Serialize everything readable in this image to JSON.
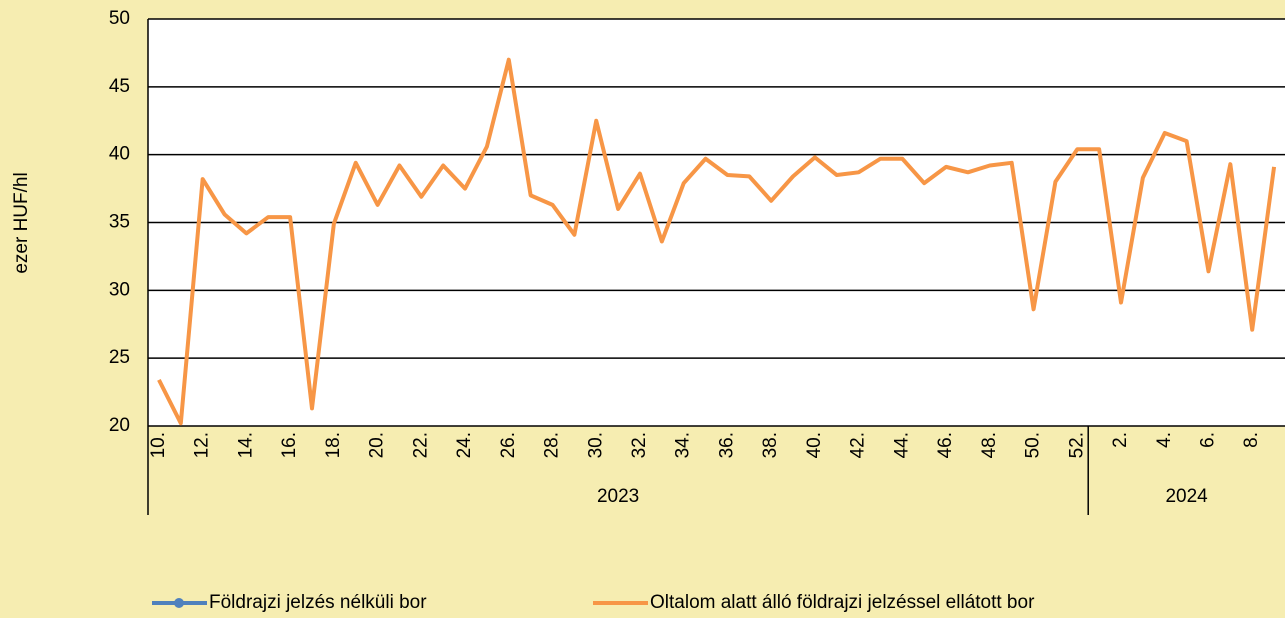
{
  "chart_data": {
    "type": "line",
    "y_label": "ezer HUF/hl",
    "categories": [
      "10.",
      null,
      "12.",
      null,
      "14.",
      null,
      "16.",
      null,
      "18.",
      null,
      "20.",
      null,
      "22.",
      null,
      "24.",
      null,
      "26.",
      null,
      "28.",
      null,
      "30.",
      null,
      "32.",
      null,
      "34.",
      null,
      "36.",
      null,
      "38.",
      null,
      "40.",
      null,
      "42.",
      null,
      "44.",
      null,
      "46.",
      null,
      "48.",
      null,
      "50.",
      null,
      "52.",
      null,
      "2.",
      null,
      "4.",
      null,
      "6.",
      null,
      "8.",
      null
    ],
    "groups": [
      {
        "label": "2023",
        "size": 43
      },
      {
        "label": "2024",
        "size": 9
      }
    ],
    "series": [
      {
        "name": "Földrajzi jelzés nélküli bor",
        "color": "#4f81bd",
        "values": [
          null,
          null,
          null,
          null,
          null,
          null,
          null,
          null,
          null,
          null,
          null,
          null,
          null,
          null,
          null,
          null,
          null,
          null,
          null,
          null,
          null,
          null,
          null,
          null,
          null,
          null,
          null,
          null,
          null,
          null,
          null,
          null,
          null,
          null,
          null,
          null,
          null,
          null,
          null,
          null,
          null,
          null,
          null,
          null,
          null,
          null,
          null,
          null,
          null,
          null,
          null,
          null
        ]
      },
      {
        "name": "Oltalom alatt álló földrajzi jelzéssel ellátott bor",
        "color": "#f79646",
        "values": [
          23.4,
          20.2,
          38.2,
          35.6,
          34.2,
          35.4,
          35.4,
          21.3,
          34.9,
          39.4,
          36.3,
          39.2,
          36.9,
          39.2,
          37.5,
          40.6,
          47.0,
          37.0,
          36.3,
          34.1,
          42.5,
          36.0,
          38.6,
          33.6,
          37.9,
          39.7,
          38.5,
          38.4,
          36.6,
          38.4,
          39.8,
          38.5,
          38.7,
          39.7,
          39.7,
          37.9,
          39.1,
          38.7,
          39.2,
          39.4,
          28.6,
          38.0,
          40.4,
          40.4,
          29.1,
          38.3,
          41.6,
          41.0,
          31.4,
          39.3,
          27.1,
          39.1
        ]
      }
    ],
    "ylim": [
      20,
      50
    ],
    "yticks": [
      20,
      25,
      30,
      35,
      40,
      45,
      50
    ],
    "grid": true
  }
}
